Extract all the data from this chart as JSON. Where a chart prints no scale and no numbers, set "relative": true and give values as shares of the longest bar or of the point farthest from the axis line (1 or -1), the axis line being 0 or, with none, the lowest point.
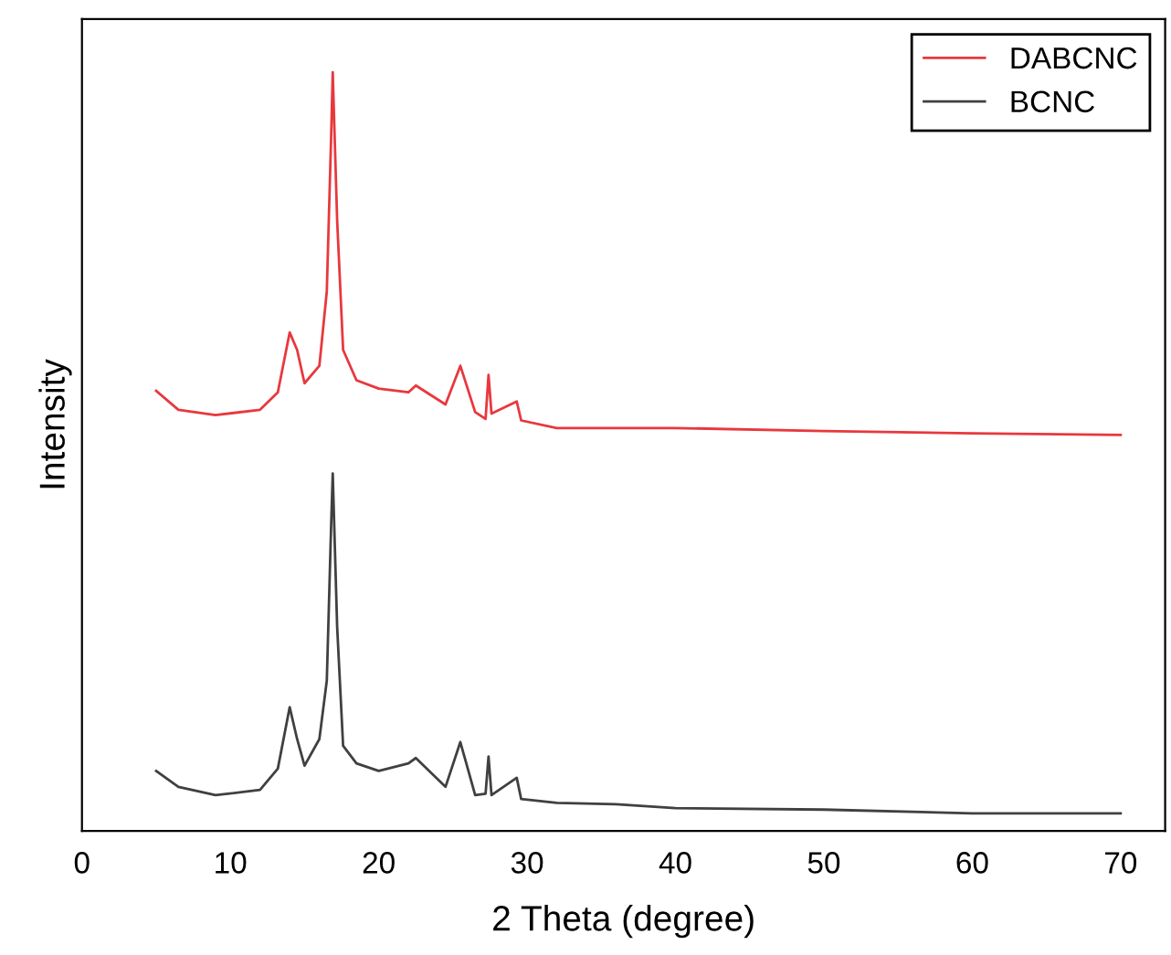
{
  "chart_data": {
    "type": "line",
    "relative": true,
    "xlabel": "2 Theta (degree)",
    "ylabel": "Intensity",
    "xlim": [
      0,
      73
    ],
    "xticks": [
      0,
      10,
      20,
      30,
      40,
      50,
      60,
      70
    ],
    "legend": "top right",
    "marker": "none",
    "line_style": "solid",
    "grid": false,
    "x": [
      5,
      6.5,
      9,
      12,
      13.2,
      14,
      14.5,
      15,
      16,
      16.5,
      16.8,
      16.9,
      17.2,
      17.6,
      18.5,
      20,
      22,
      22.5,
      24.5,
      25.5,
      26.5,
      27.2,
      27.4,
      27.6,
      29.3,
      29.6,
      32,
      36,
      40,
      50,
      60,
      70
    ],
    "series": [
      {
        "name": "DABCNC",
        "color": "#e8383d",
        "values": [
          0.58,
          0.555,
          0.548,
          0.555,
          0.578,
          0.657,
          0.634,
          0.59,
          0.613,
          0.711,
          0.92,
          1,
          0.804,
          0.634,
          0.594,
          0.583,
          0.578,
          0.587,
          0.562,
          0.613,
          0.552,
          0.543,
          0.601,
          0.55,
          0.566,
          0.541,
          0.531,
          0.531,
          0.531,
          0.527,
          0.524,
          0.522
        ]
      },
      {
        "name": "BCNC",
        "color": "#404040",
        "values": [
          0.079,
          0.058,
          0.047,
          0.054,
          0.082,
          0.163,
          0.121,
          0.086,
          0.121,
          0.198,
          0.408,
          0.471,
          0.268,
          0.112,
          0.089,
          0.079,
          0.089,
          0.096,
          0.058,
          0.117,
          0.047,
          0.049,
          0.098,
          0.047,
          0.07,
          0.042,
          0.037,
          0.035,
          0.03,
          0.028,
          0.023,
          0.023
        ]
      }
    ]
  }
}
